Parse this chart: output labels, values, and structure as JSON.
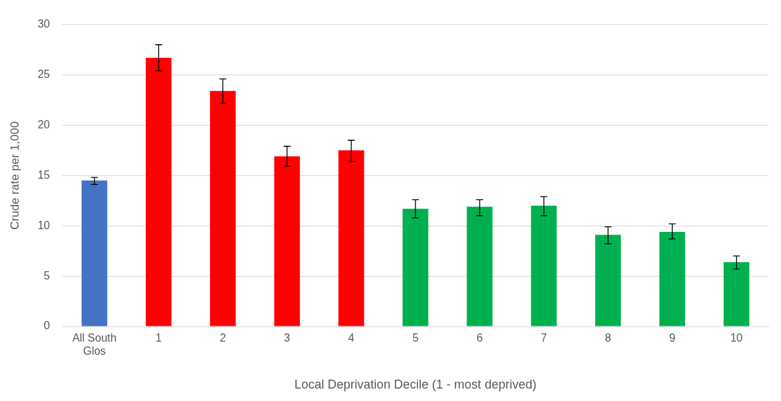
{
  "chart_data": {
    "type": "bar",
    "xlabel": "Local Deprivation Decile (1 - most deprived)",
    "ylabel": "Crude rate per 1,000",
    "categories": [
      "All South Glos",
      "1",
      "2",
      "3",
      "4",
      "5",
      "6",
      "7",
      "8",
      "9",
      "10"
    ],
    "values": [
      14.5,
      26.7,
      23.4,
      16.9,
      17.5,
      11.7,
      11.9,
      12.0,
      9.1,
      9.4,
      6.4
    ],
    "colors": [
      "#4472c4",
      "#ff0000",
      "#ff0000",
      "#ff0000",
      "#ff0000",
      "#00b050",
      "#00b050",
      "#00b050",
      "#00b050",
      "#00b050",
      "#00b050"
    ],
    "errors": [
      [
        14.1,
        14.8
      ],
      [
        25.4,
        28.0
      ],
      [
        22.2,
        24.6
      ],
      [
        15.9,
        17.9
      ],
      [
        16.4,
        18.5
      ],
      [
        10.8,
        12.6
      ],
      [
        11.0,
        12.6
      ],
      [
        11.0,
        12.9
      ],
      [
        8.2,
        9.9
      ],
      [
        8.7,
        10.2
      ],
      [
        5.7,
        7.0
      ]
    ],
    "ylim": [
      0,
      30
    ],
    "yticks": [
      0,
      5,
      10,
      15,
      20,
      25,
      30
    ],
    "grid": "y",
    "legend": false
  }
}
